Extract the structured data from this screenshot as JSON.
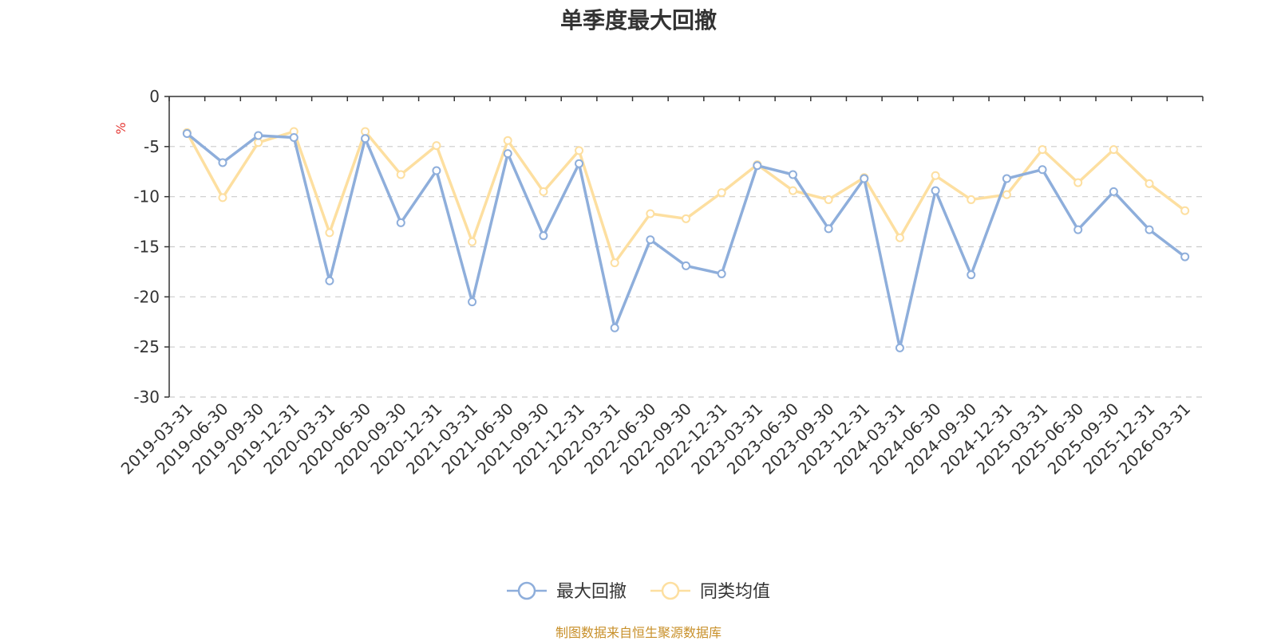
{
  "chart_data": {
    "type": "line",
    "title": "单季度最大回撤",
    "ylabel": "%",
    "ylim": [
      -30,
      0
    ],
    "yticks": [
      0,
      -5,
      -10,
      -15,
      -20,
      -25,
      -30
    ],
    "grid": true,
    "legend_position": "bottom",
    "categories": [
      "2019-03-31",
      "2019-06-30",
      "2019-09-30",
      "2019-12-31",
      "2020-03-31",
      "2020-06-30",
      "2020-09-30",
      "2020-12-31",
      "2021-03-31",
      "2021-06-30",
      "2021-09-30",
      "2021-12-31",
      "2022-03-31",
      "2022-06-30",
      "2022-09-30",
      "2022-12-31",
      "2023-03-31",
      "2023-06-30",
      "2023-09-30",
      "2023-12-31",
      "2024-03-31",
      "2024-06-30",
      "2024-09-30",
      "2024-12-31",
      "2025-03-31",
      "2025-06-30",
      "2025-09-30",
      "2025-12-31",
      "2026-03-31"
    ],
    "series": [
      {
        "name": "最大回撤",
        "color": "#8eaedb",
        "values": [
          -3.7,
          -6.6,
          -3.9,
          -4.1,
          -18.4,
          -4.2,
          -12.6,
          -7.4,
          -20.5,
          -5.7,
          -13.9,
          -6.7,
          -23.1,
          -14.3,
          -16.9,
          -17.7,
          -6.9,
          -7.8,
          -13.2,
          -8.2,
          -25.1,
          -9.4,
          -17.8,
          -8.2,
          -7.3,
          -13.3,
          -9.5,
          -13.3,
          -16.0
        ]
      },
      {
        "name": "同类均值",
        "color": "#fddfa0",
        "values": [
          -3.6,
          -10.1,
          -4.6,
          -3.5,
          -13.6,
          -3.5,
          -7.8,
          -4.9,
          -14.5,
          -4.4,
          -9.5,
          -5.4,
          -16.6,
          -11.7,
          -12.2,
          -9.6,
          -6.8,
          -9.4,
          -10.3,
          -8.1,
          -14.1,
          -7.9,
          -10.3,
          -9.8,
          -5.3,
          -8.6,
          -5.3,
          -8.7,
          -11.4
        ]
      }
    ]
  },
  "footer": {
    "source": "制图数据来自恒生聚源数据库"
  }
}
